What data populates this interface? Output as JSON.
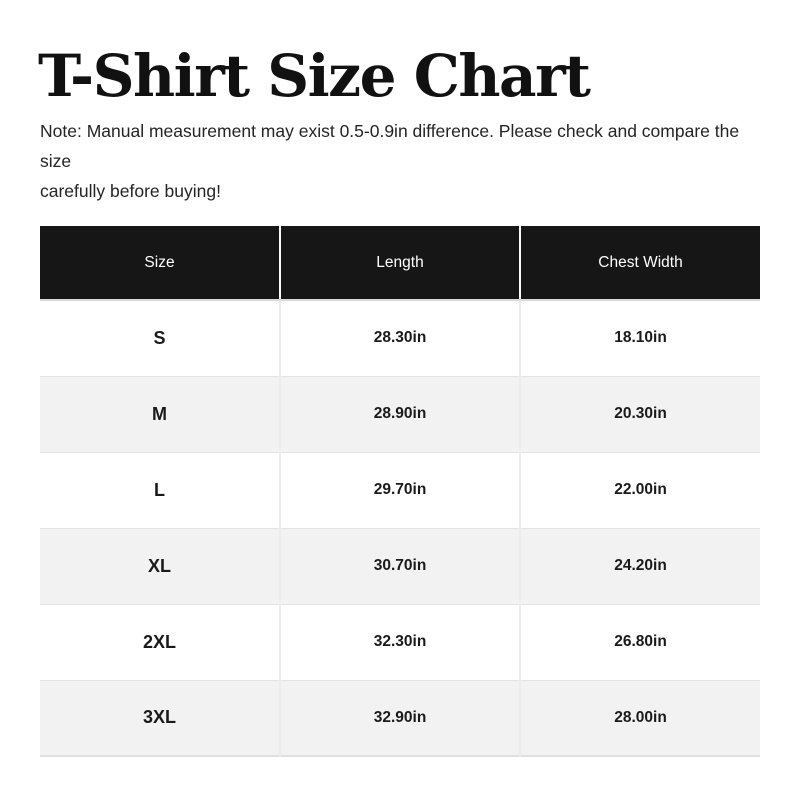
{
  "page": {
    "title": "T-Shirt Size Chart",
    "note": {
      "line1": "Note: Manual measurement may exist 0.5-0.9in difference. Please check and compare the size",
      "line2": "carefully before buying!"
    }
  },
  "chart_data": {
    "type": "table",
    "title": "T-Shirt Size Chart",
    "headers": [
      "Size",
      "Length",
      "Chest Width"
    ],
    "rows": [
      {
        "size": "S",
        "length": "28.30in",
        "chest_width": "18.10in"
      },
      {
        "size": "M",
        "length": "28.90in",
        "chest_width": "20.30in"
      },
      {
        "size": "L",
        "length": "29.70in",
        "chest_width": "22.00in"
      },
      {
        "size": "XL",
        "length": "30.70in",
        "chest_width": "24.20in"
      },
      {
        "size": "2XL",
        "length": "32.30in",
        "chest_width": "26.80in"
      },
      {
        "size": "3XL",
        "length": "32.90in",
        "chest_width": "28.00in"
      }
    ]
  },
  "colors": {
    "header_bg": "#161616",
    "header_text": "#ffffff",
    "row_alt_bg": "#f2f2f2",
    "row_bg": "#ffffff",
    "body_text": "#1a1a1a",
    "divider": "#ececec"
  }
}
